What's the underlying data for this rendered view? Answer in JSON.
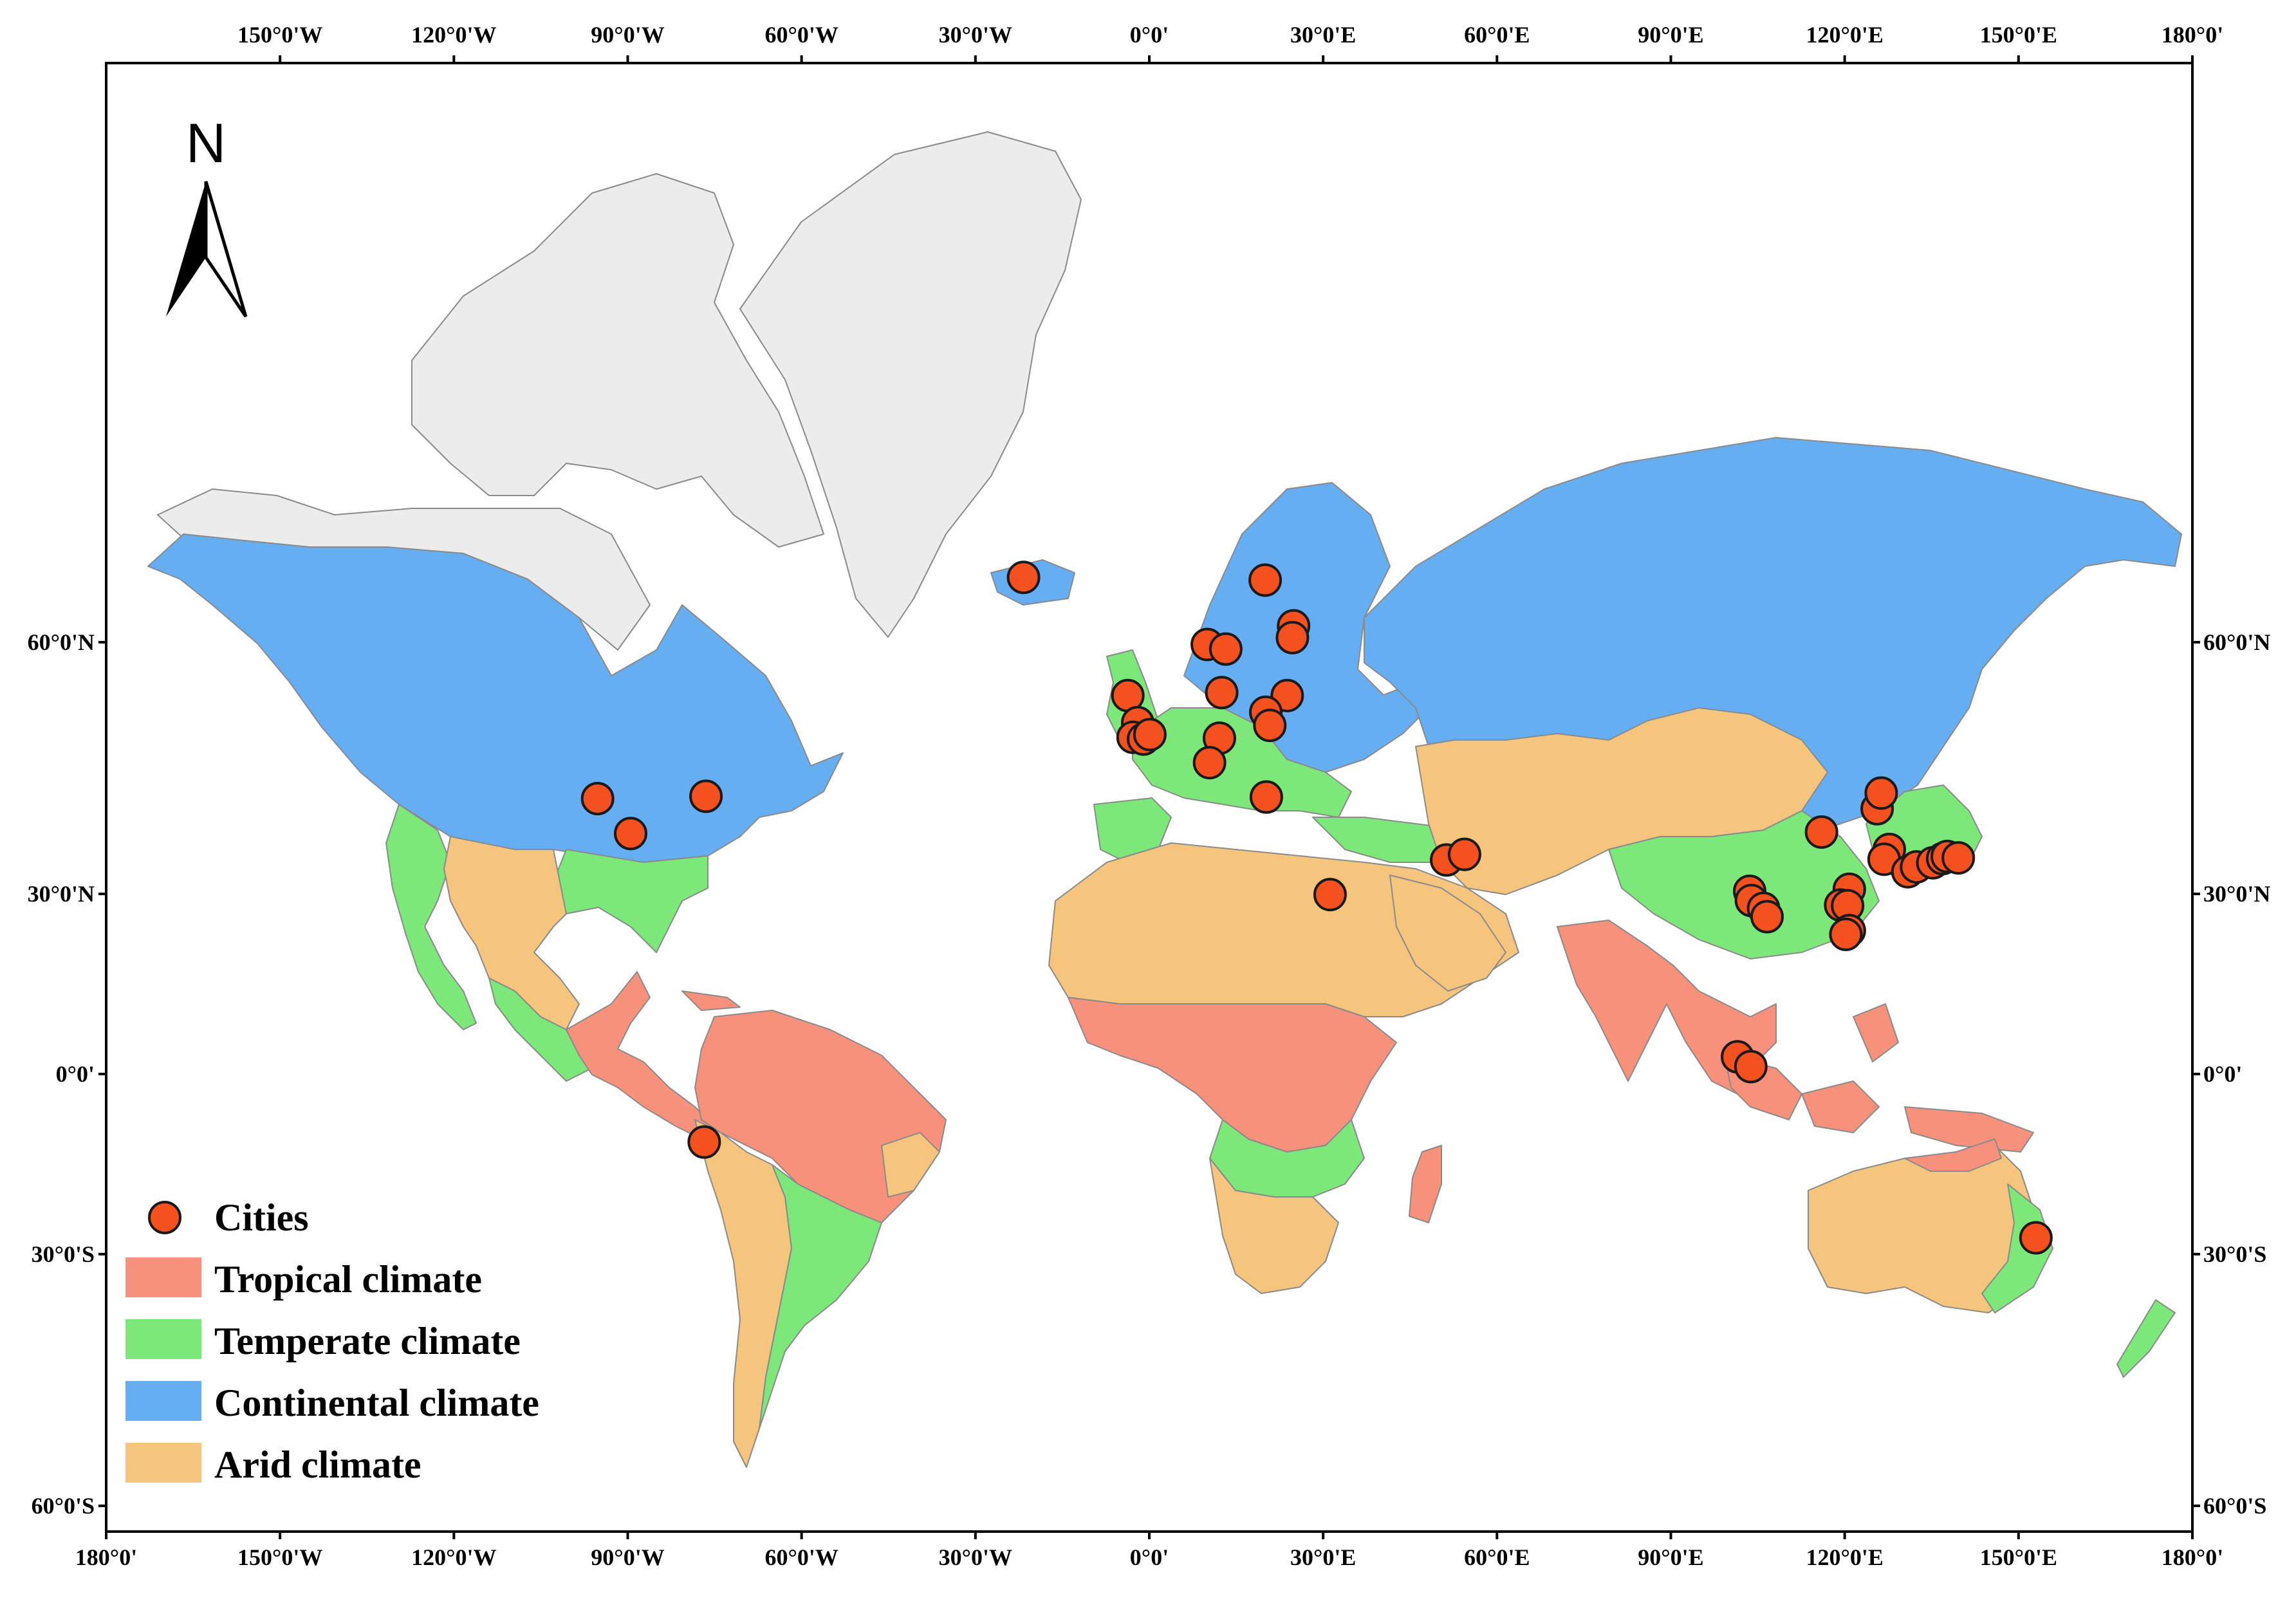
{
  "map": {
    "colors": {
      "tropical": "#F7917B",
      "temperate": "#7CE87A",
      "continental": "#66AEF2",
      "arid": "#F5C57E",
      "nodata_land": "#ECECEC",
      "ocean": "#FFFFFF",
      "city_fill": "#F4511E",
      "city_stroke": "#1A1A1A",
      "border": "#8A8A8A"
    },
    "north_arrow": {
      "label": "N",
      "icon": "north-arrow-icon"
    },
    "lon_ticks_top": [
      "150°0'W",
      "120°0'W",
      "90°0'W",
      "60°0'W",
      "30°0'W",
      "0°0'",
      "30°0'E",
      "60°0'E",
      "90°0'E",
      "120°0'E",
      "150°0'E",
      "180°0'"
    ],
    "lon_ticks_bottom": [
      "180°0'",
      "150°0'W",
      "120°0'W",
      "90°0'W",
      "60°0'W",
      "30°0'W",
      "0°0'",
      "30°0'E",
      "60°0'E",
      "90°0'E",
      "120°0'E",
      "150°0'E",
      "180°0'"
    ],
    "lat_ticks": [
      "60°0'N",
      "30°0'N",
      "0°0'",
      "30°0'S",
      "60°0'S"
    ],
    "legend": [
      {
        "key": "cities",
        "label": "Cities",
        "symbol": "circle"
      },
      {
        "key": "tropical",
        "label": "Tropical climate",
        "symbol": "patch"
      },
      {
        "key": "temperate",
        "label": "Temperate climate",
        "symbol": "patch"
      },
      {
        "key": "continental",
        "label": "Continental climate",
        "symbol": "patch"
      },
      {
        "key": "arid",
        "label": "Arid climate",
        "symbol": "patch"
      }
    ],
    "cities": [
      {
        "lon": -95.2,
        "lat": 43.3
      },
      {
        "lon": -89.5,
        "lat": 38.7
      },
      {
        "lon": -76.5,
        "lat": 43.6
      },
      {
        "lon": -76.8,
        "lat": -11.8
      },
      {
        "lon": -21.7,
        "lat": 65.2
      },
      {
        "lon": -3.7,
        "lat": 55.0
      },
      {
        "lon": -2.0,
        "lat": 52.2
      },
      {
        "lon": -2.8,
        "lat": 50.6
      },
      {
        "lon": -1.0,
        "lat": 50.4
      },
      {
        "lon": 0.1,
        "lat": 50.9
      },
      {
        "lon": 10.0,
        "lat": 59.8
      },
      {
        "lon": 13.2,
        "lat": 59.4
      },
      {
        "lon": 12.5,
        "lat": 55.3
      },
      {
        "lon": 20.0,
        "lat": 65.0
      },
      {
        "lon": 24.9,
        "lat": 61.4
      },
      {
        "lon": 24.7,
        "lat": 60.4
      },
      {
        "lon": 23.8,
        "lat": 55.0
      },
      {
        "lon": 20.1,
        "lat": 53.3
      },
      {
        "lon": 20.8,
        "lat": 51.9
      },
      {
        "lon": 12.1,
        "lat": 50.5
      },
      {
        "lon": 10.4,
        "lat": 47.7
      },
      {
        "lon": 20.2,
        "lat": 43.5
      },
      {
        "lon": 31.2,
        "lat": 29.9
      },
      {
        "lon": 51.3,
        "lat": 35.0
      },
      {
        "lon": 54.4,
        "lat": 35.8
      },
      {
        "lon": 116.0,
        "lat": 38.9
      },
      {
        "lon": 125.6,
        "lat": 42.0
      },
      {
        "lon": 126.3,
        "lat": 44.0
      },
      {
        "lon": 127.7,
        "lat": 36.5
      },
      {
        "lon": 126.8,
        "lat": 35.1
      },
      {
        "lon": 130.9,
        "lat": 33.3
      },
      {
        "lon": 132.4,
        "lat": 34.0
      },
      {
        "lon": 135.2,
        "lat": 34.6
      },
      {
        "lon": 136.9,
        "lat": 35.2
      },
      {
        "lon": 137.7,
        "lat": 35.5
      },
      {
        "lon": 139.6,
        "lat": 35.3
      },
      {
        "lon": 103.6,
        "lat": 30.4
      },
      {
        "lon": 103.9,
        "lat": 29.0
      },
      {
        "lon": 106.0,
        "lat": 27.8
      },
      {
        "lon": 106.6,
        "lat": 26.5
      },
      {
        "lon": 120.8,
        "lat": 30.7
      },
      {
        "lon": 119.3,
        "lat": 28.3
      },
      {
        "lon": 120.5,
        "lat": 28.2
      },
      {
        "lon": 120.8,
        "lat": 24.3
      },
      {
        "lon": 120.2,
        "lat": 23.7
      },
      {
        "lon": 101.5,
        "lat": 3.0
      },
      {
        "lon": 103.8,
        "lat": 1.3
      },
      {
        "lon": 153.0,
        "lat": -27.5
      }
    ]
  }
}
